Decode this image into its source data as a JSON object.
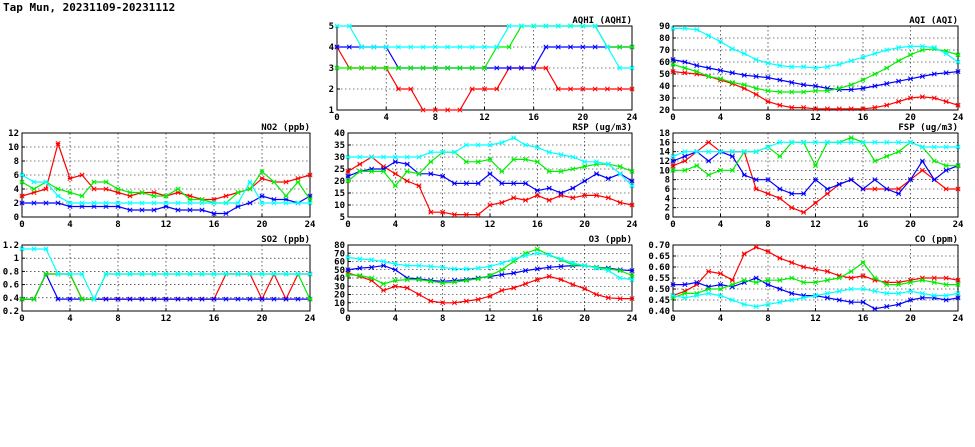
{
  "page_title": "Tap Mun, 20231109-20231112",
  "colors": {
    "day1": "#ff0000",
    "day2": "#0000ff",
    "day3": "#00ee00",
    "day4": "#00ffff"
  },
  "chart_data": [
    {
      "id": "aqhi",
      "type": "line",
      "title": "AQHI (AQHI)",
      "x_ticks": [
        0,
        4,
        8,
        12,
        16,
        20,
        24
      ],
      "xlim": [
        0,
        24
      ],
      "ylim": [
        1,
        5
      ],
      "y_ticks": [
        1,
        2,
        3,
        4,
        5
      ],
      "grid": true,
      "series": [
        {
          "color": "#ff0000",
          "values": [
            4,
            3,
            3,
            3,
            3,
            2,
            2,
            1,
            1,
            1,
            1,
            2,
            2,
            2,
            3,
            3,
            3,
            3,
            2,
            2,
            2,
            2,
            2,
            2,
            2
          ]
        },
        {
          "color": "#0000ff",
          "values": [
            4,
            4,
            4,
            4,
            4,
            3,
            3,
            3,
            3,
            3,
            3,
            3,
            3,
            3,
            3,
            3,
            3,
            4,
            4,
            4,
            4,
            4,
            4,
            4,
            4
          ]
        },
        {
          "color": "#00ee00",
          "values": [
            3,
            3,
            3,
            3,
            3,
            3,
            3,
            3,
            3,
            3,
            3,
            3,
            3,
            4,
            4,
            5,
            5,
            5,
            5,
            5,
            5,
            5,
            4,
            4,
            4
          ]
        },
        {
          "color": "#00ffff",
          "values": [
            5,
            5,
            4,
            4,
            4,
            4,
            4,
            4,
            4,
            4,
            4,
            4,
            4,
            4,
            5,
            5,
            5,
            5,
            5,
            5,
            5,
            5,
            4,
            3,
            3
          ]
        }
      ]
    },
    {
      "id": "aqi",
      "type": "line",
      "title": "AQI (AQI)",
      "x_ticks": [
        0,
        4,
        8,
        12,
        16,
        20,
        24
      ],
      "xlim": [
        0,
        24
      ],
      "ylim": [
        20,
        90
      ],
      "y_ticks": [
        20,
        30,
        40,
        50,
        60,
        70,
        80,
        90
      ],
      "grid": true,
      "series": [
        {
          "color": "#ff0000",
          "values": [
            52,
            51,
            50,
            48,
            45,
            42,
            38,
            33,
            27,
            24,
            22,
            22,
            21,
            21,
            21,
            21,
            21,
            22,
            24,
            27,
            30,
            31,
            30,
            27,
            24
          ]
        },
        {
          "color": "#0000ff",
          "values": [
            62,
            60,
            57,
            55,
            53,
            51,
            49,
            48,
            47,
            45,
            43,
            41,
            40,
            38,
            37,
            37,
            38,
            40,
            42,
            44,
            46,
            48,
            50,
            51,
            52
          ]
        },
        {
          "color": "#00ee00",
          "values": [
            58,
            55,
            52,
            48,
            46,
            43,
            41,
            38,
            36,
            35,
            35,
            35,
            36,
            36,
            38,
            41,
            45,
            50,
            55,
            61,
            66,
            70,
            71,
            69,
            66
          ]
        },
        {
          "color": "#00ffff",
          "values": [
            88,
            88,
            87,
            82,
            77,
            71,
            67,
            62,
            59,
            57,
            56,
            56,
            55,
            56,
            58,
            61,
            64,
            67,
            70,
            72,
            73,
            73,
            72,
            67,
            60
          ]
        }
      ]
    },
    {
      "id": "no2",
      "type": "line",
      "title": "NO2 (ppb)",
      "x_ticks": [
        0,
        4,
        8,
        12,
        16,
        20,
        24
      ],
      "xlim": [
        0,
        24
      ],
      "ylim": [
        0,
        12
      ],
      "y_ticks": [
        0,
        2,
        4,
        6,
        8,
        10,
        12
      ],
      "grid": true,
      "series": [
        {
          "color": "#ff0000",
          "values": [
            3,
            3.5,
            4,
            10.5,
            5.5,
            6,
            4,
            4,
            3.5,
            3,
            3.5,
            3.5,
            3,
            3.5,
            3,
            2.5,
            2.5,
            3,
            3.5,
            4,
            5.5,
            5,
            5,
            5.5,
            6
          ]
        },
        {
          "color": "#0000ff",
          "values": [
            2,
            2,
            2,
            2,
            1.5,
            1.5,
            1.5,
            1.5,
            1.5,
            1,
            1,
            1,
            1.5,
            1,
            1,
            1,
            0.5,
            0.5,
            1.5,
            2,
            3,
            2.5,
            2.5,
            2,
            3
          ]
        },
        {
          "color": "#00ee00",
          "values": [
            5,
            4,
            5,
            4,
            3.5,
            3,
            5,
            5,
            4,
            3.5,
            3.5,
            3,
            3,
            4,
            2.5,
            2.5,
            2,
            2,
            3.5,
            4,
            6.5,
            5,
            3,
            5,
            2.5
          ]
        },
        {
          "color": "#00ffff",
          "values": [
            6,
            5,
            5,
            3,
            2,
            2,
            2,
            2,
            2,
            2,
            2,
            2,
            2,
            2,
            2,
            2,
            2,
            2,
            2,
            5,
            2,
            2,
            2,
            2,
            2
          ]
        }
      ]
    },
    {
      "id": "rsp",
      "type": "line",
      "title": "RSP (ug/m3)",
      "x_ticks": [
        0,
        4,
        8,
        12,
        16,
        20,
        24
      ],
      "xlim": [
        0,
        24
      ],
      "ylim": [
        5,
        40
      ],
      "y_ticks": [
        5,
        10,
        15,
        20,
        25,
        30,
        35,
        40
      ],
      "grid": true,
      "series": [
        {
          "color": "#ff0000",
          "values": [
            24,
            27,
            30,
            26,
            23,
            20,
            18,
            7,
            7,
            6,
            6,
            6,
            10,
            11,
            13,
            12,
            14,
            12,
            14,
            13,
            14,
            14,
            13,
            11,
            10
          ]
        },
        {
          "color": "#0000ff",
          "values": [
            22,
            24,
            25,
            25,
            28,
            27,
            23,
            23,
            22,
            19,
            19,
            19,
            23,
            19,
            19,
            19,
            16,
            17,
            15,
            17,
            20,
            23,
            21,
            23,
            20
          ]
        },
        {
          "color": "#00ee00",
          "values": [
            20,
            24,
            24,
            24,
            18,
            24,
            23,
            28,
            32,
            32,
            28,
            28,
            29,
            24,
            29,
            29,
            28,
            24,
            24,
            25,
            26,
            27,
            27,
            26,
            24
          ]
        },
        {
          "color": "#00ffff",
          "values": [
            30,
            30,
            30,
            30,
            30,
            30,
            30,
            32,
            32,
            32,
            35,
            35,
            35,
            36,
            38,
            35,
            34,
            32,
            31,
            30,
            28,
            28,
            27,
            23,
            18
          ]
        }
      ]
    },
    {
      "id": "fsp",
      "type": "line",
      "title": "FSP (ug/m3)",
      "x_ticks": [
        0,
        4,
        8,
        12,
        16,
        20,
        24
      ],
      "xlim": [
        0,
        24
      ],
      "ylim": [
        0,
        18
      ],
      "y_ticks": [
        0,
        2,
        4,
        6,
        8,
        10,
        12,
        14,
        16,
        18
      ],
      "grid": true,
      "series": [
        {
          "color": "#ff0000",
          "values": [
            11,
            12,
            14,
            16,
            14,
            14,
            14,
            6,
            5,
            4,
            2,
            1,
            3,
            5,
            7,
            8,
            6,
            6,
            6,
            6,
            8,
            10,
            8,
            6,
            6
          ]
        },
        {
          "color": "#0000ff",
          "values": [
            12,
            13,
            14,
            12,
            14,
            13,
            9,
            8,
            8,
            6,
            5,
            5,
            8,
            6,
            7,
            8,
            6,
            8,
            6,
            5,
            8,
            12,
            8,
            10,
            11
          ]
        },
        {
          "color": "#00ee00",
          "values": [
            10,
            10,
            11,
            9,
            10,
            10,
            14,
            14,
            15,
            13,
            16,
            16,
            11,
            16,
            16,
            17,
            16,
            12,
            13,
            14,
            16,
            15,
            12,
            11,
            11
          ]
        },
        {
          "color": "#00ffff",
          "values": [
            13,
            14,
            14,
            14,
            14,
            14,
            14,
            14,
            15,
            16,
            16,
            16,
            16,
            16,
            16,
            16,
            16,
            16,
            16,
            16,
            16,
            15,
            15,
            15,
            15
          ]
        }
      ]
    },
    {
      "id": "so2",
      "type": "line",
      "title": "SO2 (ppb)",
      "x_ticks": [
        0,
        4,
        8,
        12,
        16,
        20,
        24
      ],
      "xlim": [
        0,
        24
      ],
      "ylim": [
        0.2,
        1.2
      ],
      "y_ticks": [
        0.2,
        0.4,
        0.6,
        0.8,
        1.0,
        1.2
      ],
      "grid": true,
      "series": [
        {
          "color": "#ff0000",
          "values": [
            0.38,
            0.38,
            0.76,
            0.76,
            0.76,
            0.38,
            0.38,
            0.38,
            0.38,
            0.38,
            0.38,
            0.38,
            0.38,
            0.38,
            0.38,
            0.38,
            0.38,
            0.76,
            0.76,
            0.76,
            0.38,
            0.76,
            0.38,
            0.76,
            0.76
          ]
        },
        {
          "color": "#0000ff",
          "values": [
            0.38,
            0.38,
            0.76,
            0.38,
            0.38,
            0.38,
            0.38,
            0.38,
            0.38,
            0.38,
            0.38,
            0.38,
            0.38,
            0.38,
            0.38,
            0.38,
            0.38,
            0.38,
            0.38,
            0.38,
            0.38,
            0.38,
            0.38,
            0.38,
            0.38
          ]
        },
        {
          "color": "#00ee00",
          "values": [
            0.38,
            0.38,
            0.76,
            0.76,
            0.76,
            0.38,
            0.38,
            0.76,
            0.76,
            0.76,
            0.76,
            0.76,
            0.76,
            0.76,
            0.76,
            0.76,
            0.76,
            0.76,
            0.76,
            0.76,
            0.76,
            0.76,
            0.76,
            0.76,
            0.38
          ]
        },
        {
          "color": "#00ffff",
          "values": [
            1.14,
            1.14,
            1.14,
            0.76,
            0.76,
            0.76,
            0.38,
            0.76,
            0.76,
            0.76,
            0.76,
            0.76,
            0.76,
            0.76,
            0.76,
            0.76,
            0.76,
            0.76,
            0.76,
            0.76,
            0.76,
            0.76,
            0.76,
            0.76,
            0.76
          ]
        }
      ]
    },
    {
      "id": "o3",
      "type": "line",
      "title": "O3 (ppb)",
      "x_ticks": [
        0,
        4,
        8,
        12,
        16,
        20,
        24
      ],
      "xlim": [
        0,
        24
      ],
      "ylim": [
        0,
        80
      ],
      "y_ticks": [
        0,
        10,
        20,
        30,
        40,
        50,
        60,
        70,
        80
      ],
      "grid": true,
      "series": [
        {
          "color": "#ff0000",
          "values": [
            46,
            42,
            37,
            25,
            30,
            28,
            20,
            12,
            10,
            10,
            12,
            14,
            18,
            25,
            28,
            33,
            38,
            42,
            38,
            32,
            27,
            20,
            16,
            15,
            15
          ]
        },
        {
          "color": "#0000ff",
          "values": [
            50,
            52,
            53,
            55,
            50,
            40,
            39,
            37,
            36,
            37,
            38,
            40,
            42,
            44,
            46,
            49,
            51,
            53,
            54,
            55,
            55,
            53,
            52,
            50,
            49
          ]
        },
        {
          "color": "#00ee00",
          "values": [
            44,
            43,
            40,
            33,
            37,
            38,
            38,
            36,
            34,
            35,
            37,
            39,
            43,
            50,
            60,
            70,
            75,
            68,
            62,
            56,
            55,
            53,
            51,
            49,
            43
          ]
        },
        {
          "color": "#00ffff",
          "values": [
            65,
            63,
            62,
            60,
            57,
            55,
            55,
            54,
            53,
            51,
            51,
            52,
            54,
            58,
            63,
            67,
            70,
            68,
            63,
            58,
            55,
            52,
            49,
            40,
            38
          ]
        }
      ]
    },
    {
      "id": "co",
      "type": "line",
      "title": "CO (ppm)",
      "x_ticks": [
        0,
        4,
        8,
        12,
        16,
        20,
        24
      ],
      "xlim": [
        0,
        24
      ],
      "ylim": [
        0.4,
        0.7
      ],
      "y_ticks": [
        0.4,
        0.45,
        0.5,
        0.55,
        0.6,
        0.65,
        0.7
      ],
      "y_tick_labels": [
        "0.40",
        "0.45",
        "0.50",
        "0.55",
        "0.60",
        "0.65",
        "0.70"
      ],
      "grid": true,
      "series": [
        {
          "color": "#ff0000",
          "values": [
            0.47,
            0.49,
            0.52,
            0.58,
            0.57,
            0.54,
            0.66,
            0.69,
            0.67,
            0.64,
            0.62,
            0.6,
            0.59,
            0.58,
            0.56,
            0.55,
            0.56,
            0.54,
            0.53,
            0.53,
            0.54,
            0.55,
            0.55,
            0.55,
            0.54
          ]
        },
        {
          "color": "#0000ff",
          "values": [
            0.52,
            0.52,
            0.53,
            0.51,
            0.52,
            0.51,
            0.53,
            0.55,
            0.52,
            0.5,
            0.48,
            0.47,
            0.47,
            0.46,
            0.45,
            0.44,
            0.44,
            0.41,
            0.42,
            0.43,
            0.45,
            0.46,
            0.46,
            0.45,
            0.46
          ]
        },
        {
          "color": "#00ee00",
          "values": [
            0.46,
            0.48,
            0.48,
            0.5,
            0.5,
            0.52,
            0.54,
            0.53,
            0.54,
            0.54,
            0.55,
            0.53,
            0.53,
            0.54,
            0.55,
            0.58,
            0.62,
            0.55,
            0.52,
            0.52,
            0.53,
            0.54,
            0.53,
            0.52,
            0.52
          ]
        },
        {
          "color": "#00ffff",
          "values": [
            0.47,
            0.46,
            0.47,
            0.48,
            0.47,
            0.45,
            0.43,
            0.42,
            0.43,
            0.44,
            0.45,
            0.46,
            0.47,
            0.48,
            0.49,
            0.5,
            0.5,
            0.49,
            0.48,
            0.48,
            0.49,
            0.48,
            0.47,
            0.47,
            0.48
          ]
        }
      ]
    }
  ]
}
